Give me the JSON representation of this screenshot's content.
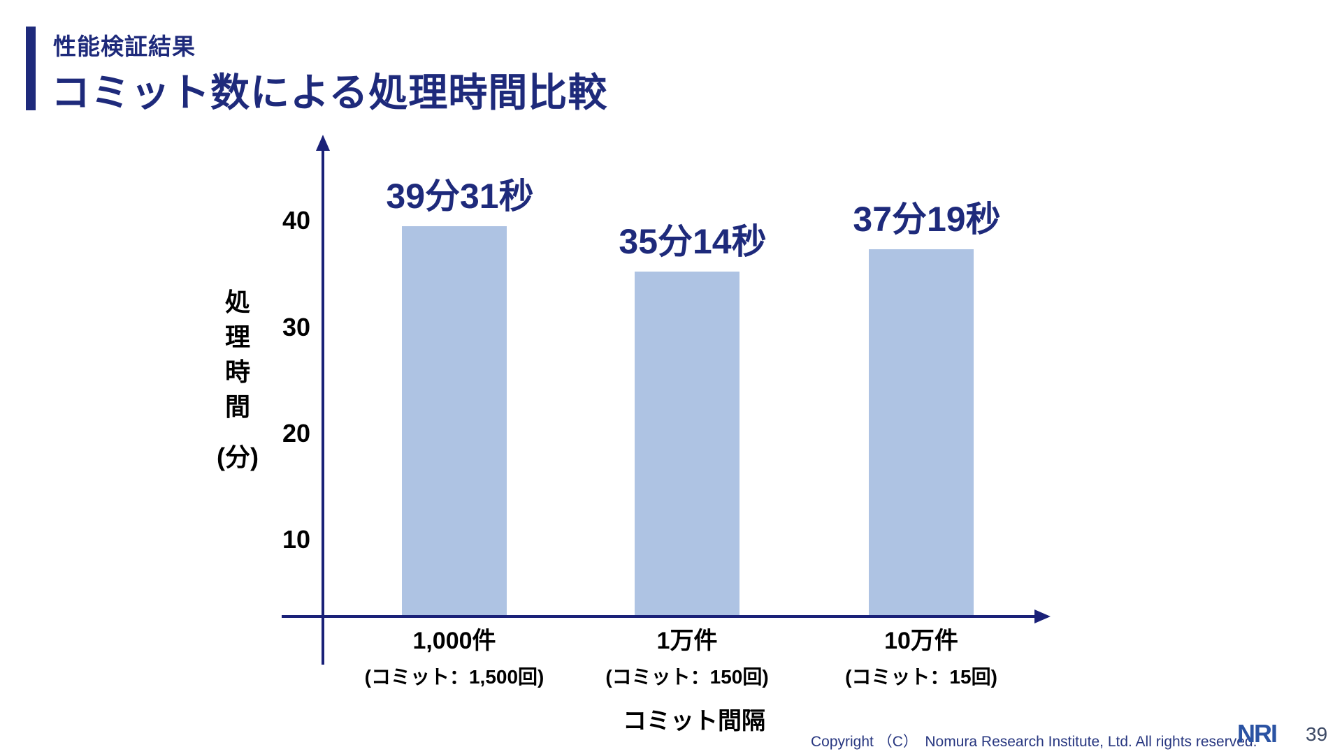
{
  "slide": {
    "eyebrow": "性能検証結果",
    "title": "コミット数による処理時間比較",
    "page_number": "39",
    "copyright": "Copyright （C）　Nomura Research Institute, Ltd. All rights reserved.",
    "logo_text": "NRI"
  },
  "colors": {
    "navy_text": "#1e2a7b",
    "axis": "#1a2178",
    "bar_fill": "#aec3e3",
    "copyright_text": "#283780",
    "logo_blue": "#2b53a3",
    "page_number": "#3c4965"
  },
  "chart_data": {
    "type": "bar",
    "title": "コミット数による処理時間比較",
    "xlabel": "コミット間隔",
    "ylabel": "処理時間(分)",
    "ylabel_lines": [
      "処",
      "理",
      "時",
      "間",
      "(分)"
    ],
    "categories": [
      "1,000件",
      "1万件",
      "10万件"
    ],
    "category_sublabels": [
      "(コミット：1,500回)",
      "(コミット：150回)",
      "(コミット：15回)"
    ],
    "value_labels": [
      "39分31秒",
      "35分14秒",
      "37分19秒"
    ],
    "values_minutes": [
      39.52,
      35.23,
      37.32
    ],
    "yticks": [
      40,
      30,
      20,
      10
    ],
    "ylim": [
      0,
      45
    ],
    "grid": false,
    "legend": false
  }
}
